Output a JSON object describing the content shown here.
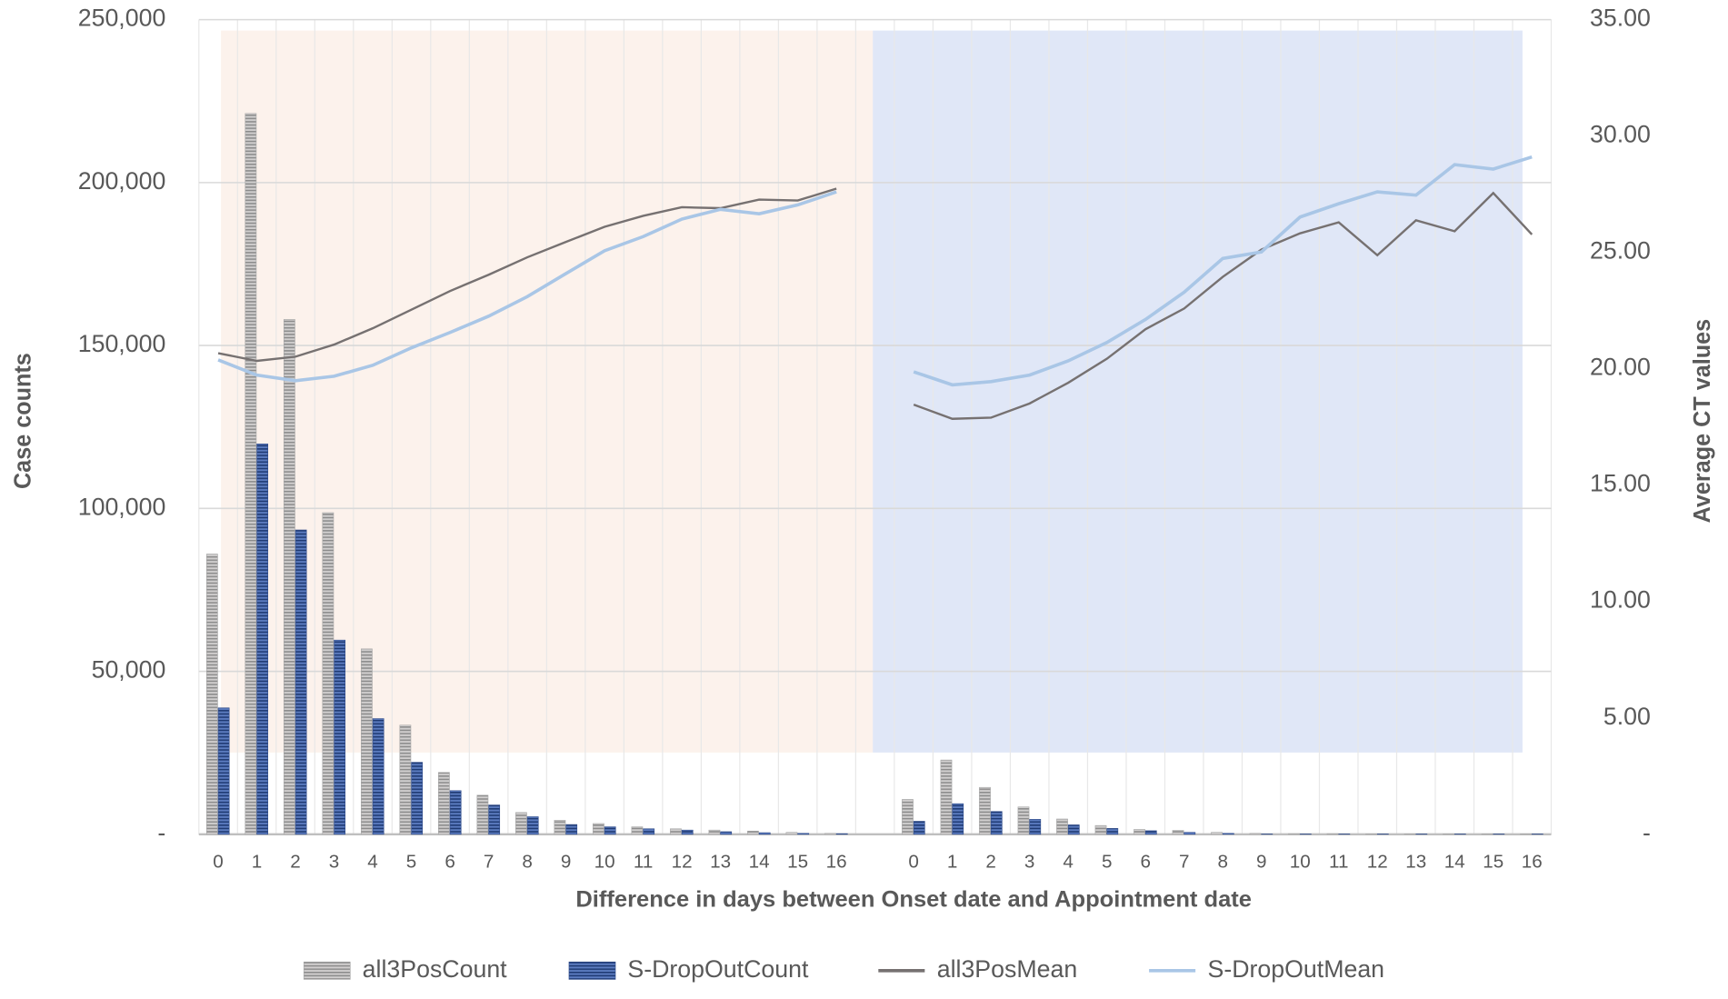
{
  "chart_data": {
    "type": "combo",
    "x_label": "Difference in days between Onset date and Appointment date",
    "y_label": "Case counts",
    "y2_label": "Average CT values",
    "categories": [
      "0",
      "1",
      "2",
      "3",
      "4",
      "5",
      "6",
      "7",
      "8",
      "9",
      "10",
      "11",
      "12",
      "13",
      "14",
      "15",
      "16",
      null,
      "0",
      "1",
      "2",
      "3",
      "4",
      "5",
      "6",
      "7",
      "8",
      "9",
      "10",
      "11",
      "12",
      "13",
      "14",
      "15",
      "16"
    ],
    "ylim": [
      0,
      250000
    ],
    "yticks": [
      {
        "value": 0,
        "label": "-"
      },
      {
        "value": 50000,
        "label": "50,000"
      },
      {
        "value": 100000,
        "label": "100,000"
      },
      {
        "value": 150000,
        "label": "150,000"
      },
      {
        "value": 200000,
        "label": "200,000"
      },
      {
        "value": 250000,
        "label": "250,000"
      }
    ],
    "y2lim": [
      0,
      35
    ],
    "y2ticks": [
      {
        "value": 0,
        "label": "-"
      },
      {
        "value": 5,
        "label": "5.00"
      },
      {
        "value": 10,
        "label": "10.00"
      },
      {
        "value": 15,
        "label": "15.00"
      },
      {
        "value": 20,
        "label": "20.00"
      },
      {
        "value": 25,
        "label": "25.00"
      },
      {
        "value": 30,
        "label": "30.00"
      },
      {
        "value": 35,
        "label": "35.00"
      }
    ],
    "grid": true,
    "legend": "bottom",
    "series": [
      {
        "name": "all3PosCount",
        "type": "bar",
        "color": "#a6a6a6",
        "values": [
          86000,
          221200,
          158000,
          98700,
          56900,
          33500,
          19000,
          12000,
          6700,
          4300,
          3300,
          2300,
          1700,
          1300,
          1000,
          600,
          300,
          null,
          10700,
          22800,
          14400,
          8400,
          4700,
          2700,
          1500,
          1200,
          600,
          300,
          200,
          200,
          100,
          100,
          100,
          100,
          100
        ]
      },
      {
        "name": "S-DropOutCount",
        "type": "bar",
        "color": "#2f4b8a",
        "values": [
          38800,
          119800,
          93400,
          59600,
          35500,
          22100,
          13400,
          9000,
          5400,
          3000,
          2300,
          1700,
          1300,
          800,
          500,
          300,
          200,
          null,
          4000,
          9400,
          7000,
          4600,
          2900,
          1800,
          1100,
          600,
          300,
          100,
          100,
          100,
          100,
          100,
          100,
          100,
          100
        ]
      },
      {
        "name": "all3PosMean",
        "type": "line",
        "axis": "y2",
        "color": "#767171",
        "values": [
          20.67,
          20.34,
          20.52,
          21.04,
          21.74,
          22.54,
          23.34,
          24.04,
          24.79,
          25.45,
          26.1,
          26.57,
          26.94,
          26.9,
          27.27,
          27.23,
          27.74,
          null,
          18.46,
          17.85,
          17.9,
          18.51,
          19.4,
          20.43,
          21.7,
          22.59,
          23.95,
          25.12,
          25.82,
          26.29,
          24.88,
          26.38,
          25.91,
          27.55,
          25.77
        ]
      },
      {
        "name": "S-DropOutMean",
        "type": "line",
        "axis": "y2",
        "color": "#a9c6e6",
        "values": [
          20.38,
          19.73,
          19.49,
          19.68,
          20.15,
          20.9,
          21.56,
          22.26,
          23.1,
          24.09,
          25.07,
          25.68,
          26.43,
          26.85,
          26.66,
          27.04,
          27.6,
          null,
          19.87,
          19.31,
          19.45,
          19.73,
          20.34,
          21.13,
          22.12,
          23.29,
          24.74,
          25.02,
          26.52,
          27.09,
          27.6,
          27.46,
          28.77,
          28.58,
          29.1
        ]
      }
    ]
  }
}
